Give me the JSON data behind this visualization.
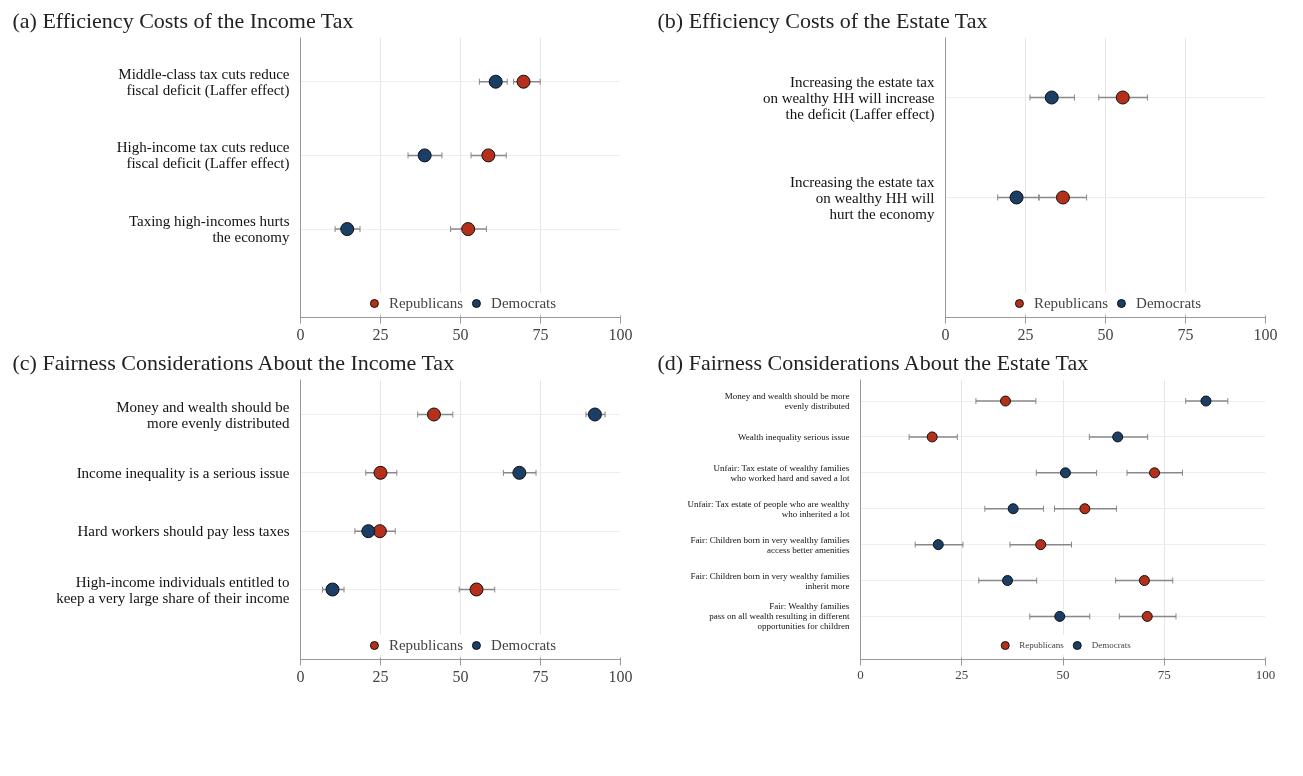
{
  "chart_data": [
    {
      "type": "scatter",
      "title": "(a) Efficiency Costs of the Income Tax",
      "orientation": "horizontal",
      "categories": [
        "Middle-class tax cuts reduce\nfiscal deficit (Laffer effect)",
        "High-income tax cuts reduce\nfiscal deficit (Laffer effect)",
        "Taxing high-incomes hurts\nthe economy"
      ],
      "xlim": [
        0,
        100
      ],
      "xticks": [
        0,
        25,
        50,
        75,
        100
      ],
      "grid": true,
      "legend": "bottom",
      "marker": "circle",
      "series": [
        {
          "name": "Republicans",
          "color": "#b5301a",
          "values": [
            69.7,
            58.7,
            52.4
          ],
          "errors": [
            [
              66.6,
              74.9
            ],
            [
              53.3,
              64.3
            ],
            [
              46.9,
              58.1
            ]
          ]
        },
        {
          "name": "Democrats",
          "color": "#1a3e66",
          "values": [
            61.0,
            38.8,
            14.6
          ],
          "errors": [
            [
              55.9,
              64.6
            ],
            [
              33.6,
              44.2
            ],
            [
              10.8,
              18.6
            ]
          ]
        }
      ]
    },
    {
      "type": "scatter",
      "title": "(b) Efficiency Costs of the Estate Tax",
      "orientation": "horizontal",
      "categories": [
        "Increasing the estate tax\non wealthy HH will increase\nthe deficit (Laffer effect)",
        "Increasing the estate tax\non wealthy HH will\nhurt the economy"
      ],
      "xlim": [
        0,
        100
      ],
      "xticks": [
        0,
        25,
        50,
        75,
        100
      ],
      "grid": true,
      "legend": "bottom",
      "marker": "circle",
      "series": [
        {
          "name": "Republicans",
          "color": "#b5301a",
          "values": [
            55.4,
            36.7
          ],
          "errors": [
            [
              47.9,
              63.1
            ],
            [
              29.3,
              44.1
            ]
          ]
        },
        {
          "name": "Democrats",
          "color": "#1a3e66",
          "values": [
            33.2,
            22.2
          ],
          "errors": [
            [
              26.4,
              40.3
            ],
            [
              16.3,
              29.1
            ]
          ]
        }
      ]
    },
    {
      "type": "scatter",
      "title": "(c) Fairness Considerations About the Income Tax",
      "orientation": "horizontal",
      "categories": [
        "Money and wealth should be\nmore evenly distributed",
        "Income inequality is a serious issue",
        "Hard workers should pay less taxes",
        "High-income individuals entitled to\nkeep a very large share of their income"
      ],
      "xlim": [
        0,
        100
      ],
      "xticks": [
        0,
        25,
        50,
        75,
        100
      ],
      "grid": true,
      "legend": "bottom",
      "marker": "circle",
      "series": [
        {
          "name": "Republicans",
          "color": "#b5301a",
          "values": [
            41.7,
            25.0,
            24.8,
            55.0
          ],
          "errors": [
            [
              36.6,
              47.6
            ],
            [
              20.4,
              30.1
            ],
            [
              24.8,
              29.6
            ],
            [
              49.6,
              60.7
            ]
          ]
        },
        {
          "name": "Democrats",
          "color": "#1a3e66",
          "values": [
            92.0,
            68.4,
            21.2,
            10.0
          ],
          "errors": [
            [
              89.2,
              95.2
            ],
            [
              63.4,
              73.6
            ],
            [
              17.0,
              21.2
            ],
            [
              6.9,
              13.6
            ]
          ]
        }
      ]
    },
    {
      "type": "scatter",
      "title": "(d) Fairness Considerations About the Estate Tax",
      "orientation": "horizontal",
      "categories": [
        "Money and wealth should be more\nevenly distributed",
        "Wealth inequality serious issue",
        "Unfair: Tax estate of wealthy families\nwho worked hard and saved a lot",
        "Unfair: Tax estate of people who are wealthy\nwho inherited a lot",
        "Fair: Children born in very wealthy families\naccess better amenities",
        "Fair: Children born in very wealthy families\ninherit more",
        "Fair: Wealthy families\npass on all wealth resulting in different\nopportunities for children"
      ],
      "xlim": [
        0,
        100
      ],
      "xticks": [
        0,
        25,
        50,
        75,
        100
      ],
      "grid": true,
      "legend": "bottom",
      "marker": "circle",
      "series": [
        {
          "name": "Republicans",
          "color": "#b5301a",
          "values": [
            35.8,
            17.7,
            72.6,
            55.4,
            44.5,
            70.1,
            70.8
          ],
          "errors": [
            [
              28.5,
              43.3
            ],
            [
              12.0,
              23.9
            ],
            [
              65.8,
              79.5
            ],
            [
              47.9,
              63.2
            ],
            [
              36.9,
              52.1
            ],
            [
              63.0,
              77.1
            ],
            [
              63.9,
              77.9
            ]
          ]
        },
        {
          "name": "Democrats",
          "color": "#1a3e66",
          "values": [
            85.3,
            63.5,
            50.6,
            37.7,
            19.2,
            36.3,
            49.2
          ],
          "errors": [
            [
              80.3,
              90.7
            ],
            [
              56.5,
              70.9
            ],
            [
              43.4,
              58.3
            ],
            [
              30.7,
              45.2
            ],
            [
              13.5,
              25.3
            ],
            [
              29.2,
              43.5
            ],
            [
              41.8,
              56.6
            ]
          ]
        }
      ]
    }
  ]
}
